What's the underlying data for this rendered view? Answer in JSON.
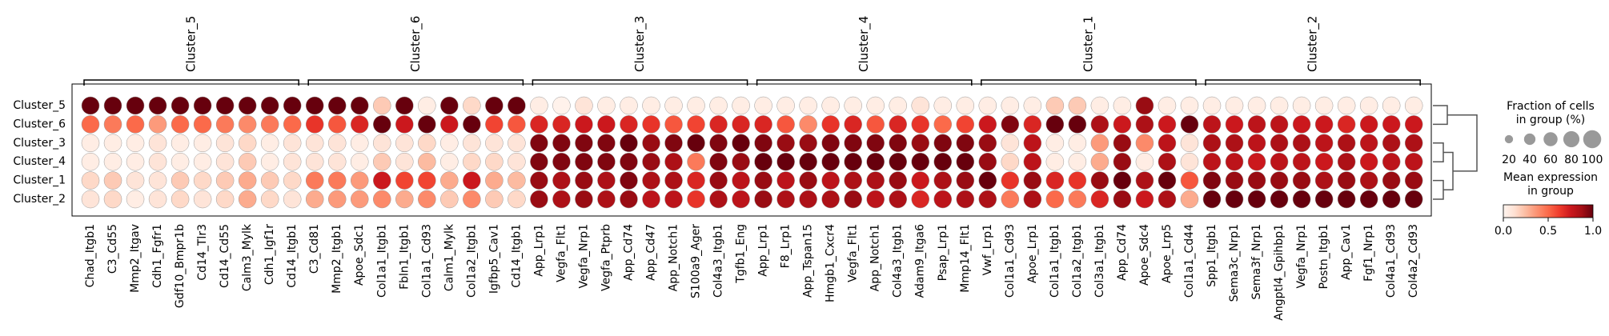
{
  "chart_data": {
    "type": "dotplot",
    "groups": [
      {
        "name": "Cluster_5",
        "genes": [
          "Chad_Itgb1",
          "C3_Cd55",
          "Mmp2_Itgav",
          "Cdh1_Fgfr1",
          "Gdf10_Bmpr1b",
          "Cd14_Tlr3",
          "Cd14_Cd55",
          "Calm3_Mylk",
          "Cdh1_Igf1r",
          "Cd14_Itgb1"
        ]
      },
      {
        "name": "Cluster_6",
        "genes": [
          "C3_Cd81",
          "Mmp2_Itgb1",
          "Apoe_Sdc1",
          "Col1a1_Itgb1",
          "Fbln1_Itgb1",
          "Col1a1_Cd93",
          "Calm1_Mylk",
          "Col1a2_Itgb1",
          "Igfbp5_Cav1",
          "Cd14_Itgb1"
        ]
      },
      {
        "name": "Cluster_3",
        "genes": [
          "App_Lrp1",
          "Vegfa_Flt1",
          "Vegfa_Nrp1",
          "Vegfa_Ptprb",
          "App_Cd74",
          "App_Cd47",
          "App_Notch1",
          "S100a9_Ager",
          "Col4a3_Itgb1",
          "Tgfb1_Eng"
        ]
      },
      {
        "name": "Cluster_4",
        "genes": [
          "App_Lrp1",
          "F8_Lrp1",
          "App_Tspan15",
          "Hmgb1_Cxcr4",
          "Vegfa_Flt1",
          "App_Notch1",
          "Col4a3_Itgb1",
          "Adam9_Itga6",
          "Psap_Lrp1",
          "Mmp14_Flt1"
        ]
      },
      {
        "name": "Cluster_1",
        "genes": [
          "Vwf_Lrp1",
          "Col1a1_Cd93",
          "Apoe_Lrp1",
          "Col1a1_Itgb1",
          "Col1a2_Itgb1",
          "Col3a1_Itgb1",
          "App_Cd74",
          "Apoe_Sdc4",
          "Apoe_Lrp5",
          "Col1a1_Cd44"
        ]
      },
      {
        "name": "Cluster_2",
        "genes": [
          "Spp1_Itgb1",
          "Sema3c_Nrp1",
          "Sema3f_Nrp1",
          "Angptl4_Gpihbp1",
          "Vegfa_Nrp1",
          "Postn_Itgb1",
          "App_Cav1",
          "Fgf1_Nrp1",
          "Col4a1_Cd93",
          "Col4a2_Cd93"
        ]
      }
    ],
    "series": [
      {
        "name": "Cluster_5",
        "values": [
          1,
          1,
          1,
          1,
          1,
          1,
          1,
          1,
          1,
          1,
          1,
          1,
          1,
          0.2,
          1,
          0.05,
          1,
          0.15,
          1,
          1,
          0.05,
          0.02,
          0.1,
          0.05,
          0.05,
          0.05,
          0.05,
          0.05,
          0.05,
          0.05,
          0.05,
          0.05,
          0.05,
          0.05,
          0.05,
          0.05,
          0.05,
          0.1,
          0.05,
          0.05,
          0.05,
          0.05,
          0.05,
          0.2,
          0.2,
          0.05,
          0.05,
          0.9,
          0.05,
          0.05,
          0.05,
          0.05,
          0.05,
          0.05,
          0.05,
          0.05,
          0.05,
          0.05,
          0.05,
          0.05
        ],
        "fraction": [
          100,
          100,
          100,
          100,
          100,
          100,
          100,
          100,
          100,
          100,
          100,
          100,
          100,
          100,
          100,
          100,
          100,
          100,
          100,
          100,
          100,
          100,
          100,
          100,
          100,
          100,
          100,
          100,
          100,
          100,
          100,
          100,
          100,
          100,
          100,
          100,
          100,
          100,
          100,
          100,
          100,
          100,
          100,
          100,
          100,
          100,
          100,
          100,
          100,
          100,
          100,
          100,
          100,
          100,
          100,
          100,
          100,
          100,
          100,
          100
        ]
      },
      {
        "name": "Cluster_6",
        "values": [
          0.5,
          0.45,
          0.5,
          0.35,
          0.5,
          0.5,
          0.45,
          0.4,
          0.45,
          0.5,
          0.65,
          0.55,
          0.7,
          1,
          0.75,
          1,
          0.75,
          1,
          0.6,
          0.55,
          0.7,
          0.7,
          0.75,
          0.75,
          0.7,
          0.65,
          0.55,
          0.6,
          0.7,
          0.7,
          0.7,
          0.55,
          0.4,
          0.65,
          0.7,
          0.55,
          0.7,
          0.65,
          0.5,
          0.6,
          0.75,
          0.95,
          0.7,
          1,
          1,
          0.85,
          0.75,
          0.85,
          0.75,
          1,
          0.8,
          0.75,
          0.8,
          0.8,
          0.75,
          0.75,
          0.7,
          0.75,
          0.75,
          0.75
        ],
        "fraction": [
          100,
          100,
          100,
          100,
          100,
          100,
          100,
          100,
          100,
          100,
          100,
          100,
          100,
          100,
          100,
          100,
          100,
          100,
          100,
          100,
          100,
          100,
          100,
          100,
          100,
          100,
          100,
          100,
          100,
          100,
          100,
          100,
          100,
          100,
          100,
          100,
          100,
          100,
          100,
          100,
          100,
          100,
          100,
          100,
          100,
          100,
          100,
          100,
          100,
          100,
          100,
          100,
          100,
          100,
          100,
          100,
          100,
          100,
          100,
          100
        ]
      },
      {
        "name": "Cluster_3",
        "values": [
          0.05,
          0.05,
          0.05,
          0.1,
          0.05,
          0.05,
          0.1,
          0.15,
          0.05,
          0.1,
          0.1,
          0.1,
          0.05,
          0.1,
          0.1,
          0.15,
          0.05,
          0.1,
          0.1,
          0.1,
          0.95,
          0.95,
          0.95,
          0.95,
          1,
          0.9,
          0.95,
          1,
          0.95,
          1,
          0.95,
          0.9,
          0.9,
          0.95,
          0.95,
          0.95,
          0.95,
          0.9,
          0.95,
          0.95,
          0.9,
          0.1,
          0.8,
          0.05,
          0.05,
          0.35,
          0.9,
          0.4,
          0.8,
          0.1,
          0.85,
          0.85,
          0.8,
          0.85,
          0.85,
          0.8,
          0.85,
          0.8,
          0.85,
          0.85
        ],
        "fraction": [
          100,
          100,
          100,
          100,
          100,
          100,
          100,
          100,
          100,
          100,
          100,
          100,
          100,
          100,
          100,
          100,
          100,
          100,
          100,
          100,
          100,
          100,
          100,
          100,
          100,
          100,
          100,
          100,
          100,
          100,
          100,
          100,
          100,
          100,
          100,
          100,
          100,
          100,
          100,
          100,
          100,
          100,
          100,
          100,
          100,
          100,
          100,
          100,
          100,
          100,
          100,
          100,
          100,
          100,
          100,
          100,
          100,
          100,
          100,
          100
        ]
      },
      {
        "name": "Cluster_4",
        "values": [
          0.05,
          0.05,
          0.05,
          0.1,
          0.05,
          0.05,
          0.1,
          0.2,
          0.05,
          0.1,
          0.1,
          0.1,
          0.05,
          0.2,
          0.1,
          0.25,
          0.05,
          0.15,
          0.15,
          0.1,
          0.95,
          0.95,
          0.95,
          0.95,
          0.95,
          0.9,
          0.85,
          0.45,
          0.95,
          0.9,
          1,
          1,
          1,
          1,
          1,
          1,
          1,
          1,
          1,
          1,
          0.9,
          0.15,
          0.8,
          0.05,
          0.05,
          0.3,
          0.9,
          0.05,
          0.85,
          0.1,
          0.8,
          0.8,
          0.75,
          0.8,
          0.8,
          0.75,
          0.85,
          0.75,
          0.8,
          0.8
        ],
        "fraction": [
          100,
          100,
          100,
          100,
          100,
          100,
          100,
          100,
          100,
          100,
          100,
          100,
          100,
          100,
          100,
          100,
          100,
          100,
          100,
          100,
          100,
          100,
          100,
          100,
          100,
          100,
          100,
          100,
          100,
          100,
          100,
          100,
          100,
          100,
          100,
          100,
          100,
          100,
          100,
          100,
          100,
          100,
          100,
          100,
          100,
          100,
          100,
          100,
          100,
          100,
          100,
          100,
          100,
          100,
          100,
          100,
          100,
          100,
          100,
          100
        ]
      },
      {
        "name": "Cluster_1",
        "values": [
          0.15,
          0.2,
          0.1,
          0.1,
          0.2,
          0.15,
          0.2,
          0.3,
          0.2,
          0.15,
          0.45,
          0.45,
          0.35,
          0.75,
          0.6,
          0.6,
          0.3,
          0.75,
          0.3,
          0.25,
          0.9,
          0.85,
          0.9,
          0.85,
          0.95,
          0.85,
          0.85,
          0.7,
          0.9,
          0.8,
          0.9,
          0.8,
          0.9,
          0.8,
          0.85,
          0.85,
          0.9,
          0.75,
          0.85,
          0.9,
          1,
          0.65,
          0.9,
          0.7,
          0.65,
          0.9,
          1,
          0.85,
          1,
          0.55,
          0.95,
          0.9,
          0.9,
          0.9,
          0.9,
          0.85,
          0.9,
          0.85,
          0.9,
          0.9
        ],
        "fraction": [
          100,
          100,
          100,
          100,
          100,
          100,
          100,
          100,
          100,
          100,
          100,
          100,
          100,
          100,
          100,
          100,
          100,
          100,
          100,
          100,
          100,
          100,
          100,
          100,
          100,
          100,
          100,
          100,
          100,
          100,
          100,
          100,
          100,
          100,
          100,
          100,
          100,
          100,
          100,
          100,
          100,
          100,
          100,
          100,
          100,
          100,
          100,
          100,
          100,
          100,
          100,
          100,
          100,
          100,
          100,
          100,
          100,
          100,
          100,
          100
        ]
      },
      {
        "name": "Cluster_2",
        "values": [
          0.1,
          0.15,
          0.05,
          0.1,
          0.15,
          0.1,
          0.15,
          0.3,
          0.15,
          0.1,
          0.3,
          0.35,
          0.35,
          0.4,
          0.3,
          0.4,
          0.2,
          0.4,
          0.2,
          0.15,
          0.9,
          0.85,
          0.9,
          0.85,
          0.9,
          0.8,
          0.8,
          0.65,
          0.85,
          0.8,
          0.9,
          0.85,
          0.85,
          0.85,
          0.9,
          0.8,
          0.85,
          0.7,
          0.8,
          0.85,
          0.85,
          0.45,
          0.85,
          0.5,
          0.45,
          0.7,
          0.9,
          0.75,
          0.85,
          0.3,
          1,
          1,
          1,
          1,
          1,
          1,
          1,
          1,
          1,
          1
        ],
        "fraction": [
          100,
          100,
          100,
          100,
          100,
          100,
          100,
          100,
          100,
          100,
          100,
          100,
          100,
          100,
          100,
          100,
          100,
          100,
          100,
          100,
          100,
          100,
          100,
          100,
          100,
          100,
          100,
          100,
          100,
          100,
          100,
          100,
          100,
          100,
          100,
          100,
          100,
          100,
          100,
          100,
          100,
          100,
          100,
          100,
          100,
          100,
          100,
          100,
          100,
          100,
          100,
          100,
          100,
          100,
          100,
          100,
          100,
          100,
          100,
          100
        ]
      }
    ],
    "colormap": [
      "#fff5f0",
      "#fee0d2",
      "#fcbba1",
      "#fc9272",
      "#fb6a4a",
      "#ef3b2c",
      "#cb181d",
      "#a50f15",
      "#67000d"
    ],
    "size_legend": {
      "title": [
        "Fraction of cells",
        "in group (%)"
      ],
      "values": [
        20,
        40,
        60,
        80,
        100
      ],
      "lim": [
        0,
        100
      ]
    },
    "color_legend": {
      "title": [
        "Mean expression",
        "in group"
      ],
      "lim": [
        0,
        1
      ],
      "ticks": [
        {
          "value": 0,
          "label": "0.0"
        },
        {
          "value": 0.5,
          "label": "0.5"
        },
        {
          "value": 1,
          "label": "1.0"
        }
      ]
    }
  }
}
